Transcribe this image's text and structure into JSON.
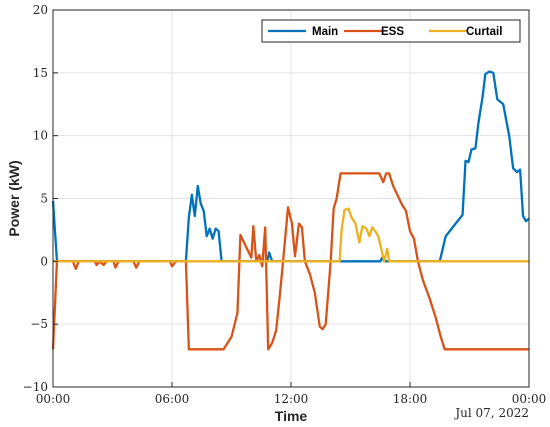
{
  "chart_data": {
    "type": "line",
    "xlabel": "Time",
    "ylabel": "Power (kW)",
    "date_label": "Jul 07, 2022",
    "xlim": [
      0,
      24
    ],
    "ylim": [
      -10,
      20
    ],
    "x_ticks": [
      {
        "value": 0,
        "label": "00:00"
      },
      {
        "value": 6,
        "label": "06:00"
      },
      {
        "value": 12,
        "label": "12:00"
      },
      {
        "value": 18,
        "label": "18:00"
      },
      {
        "value": 24,
        "label": "00:00"
      }
    ],
    "y_ticks": [
      -10,
      -5,
      0,
      5,
      10,
      15,
      20
    ],
    "grid": true,
    "legend_position": "top-right",
    "series": [
      {
        "name": "Main",
        "color": "#0072BD",
        "points": [
          [
            0,
            4.8
          ],
          [
            0.2,
            0
          ],
          [
            6.7,
            0
          ],
          [
            6.85,
            3.5
          ],
          [
            7.0,
            5.3
          ],
          [
            7.15,
            3.6
          ],
          [
            7.3,
            6.0
          ],
          [
            7.45,
            4.6
          ],
          [
            7.6,
            4.0
          ],
          [
            7.75,
            2.0
          ],
          [
            7.9,
            2.6
          ],
          [
            8.05,
            1.8
          ],
          [
            8.2,
            2.6
          ],
          [
            8.35,
            2.4
          ],
          [
            8.5,
            0
          ],
          [
            10.8,
            0
          ],
          [
            10.9,
            0.7
          ],
          [
            11.05,
            0
          ],
          [
            14.5,
            0
          ],
          [
            16.5,
            0
          ],
          [
            16.6,
            0.3
          ],
          [
            16.7,
            0
          ],
          [
            19.5,
            0
          ],
          [
            19.8,
            2.0
          ],
          [
            20.3,
            3.0
          ],
          [
            20.65,
            3.7
          ],
          [
            20.8,
            8.0
          ],
          [
            20.95,
            7.9
          ],
          [
            21.1,
            8.9
          ],
          [
            21.3,
            9.0
          ],
          [
            21.45,
            11.0
          ],
          [
            21.65,
            13.0
          ],
          [
            21.8,
            14.9
          ],
          [
            22.0,
            15.1
          ],
          [
            22.2,
            15.0
          ],
          [
            22.4,
            12.9
          ],
          [
            22.7,
            12.5
          ],
          [
            23.0,
            10.0
          ],
          [
            23.2,
            7.4
          ],
          [
            23.4,
            7.1
          ],
          [
            23.55,
            7.3
          ],
          [
            23.7,
            3.6
          ],
          [
            23.85,
            3.2
          ],
          [
            24.0,
            3.4
          ]
        ]
      },
      {
        "name": "ESS",
        "color": "#D95319",
        "points": [
          [
            0,
            -7.0
          ],
          [
            0.2,
            0
          ],
          [
            1.0,
            0
          ],
          [
            1.15,
            -0.6
          ],
          [
            1.3,
            0
          ],
          [
            2.1,
            0
          ],
          [
            2.2,
            -0.3
          ],
          [
            2.35,
            0
          ],
          [
            2.55,
            -0.3
          ],
          [
            2.7,
            0
          ],
          [
            3.05,
            0
          ],
          [
            3.15,
            -0.5
          ],
          [
            3.3,
            0
          ],
          [
            4.05,
            0
          ],
          [
            4.2,
            -0.5
          ],
          [
            4.35,
            0
          ],
          [
            5.9,
            0
          ],
          [
            6.0,
            -0.4
          ],
          [
            6.2,
            0
          ],
          [
            6.7,
            0
          ],
          [
            6.85,
            -7.0
          ],
          [
            8.6,
            -7.0
          ],
          [
            9.0,
            -6.0
          ],
          [
            9.3,
            -4.1
          ],
          [
            9.45,
            2.1
          ],
          [
            9.75,
            1.1
          ],
          [
            10.0,
            0.3
          ],
          [
            10.1,
            2.8
          ],
          [
            10.25,
            0
          ],
          [
            10.4,
            0.5
          ],
          [
            10.55,
            -0.4
          ],
          [
            10.7,
            2.7
          ],
          [
            10.85,
            -7.0
          ],
          [
            11.05,
            -6.5
          ],
          [
            11.25,
            -5.5
          ],
          [
            11.45,
            -2.5
          ],
          [
            11.6,
            0
          ],
          [
            11.85,
            4.3
          ],
          [
            12.05,
            3.0
          ],
          [
            12.2,
            0.4
          ],
          [
            12.4,
            3.0
          ],
          [
            12.55,
            2.7
          ],
          [
            12.7,
            0
          ],
          [
            12.95,
            -1.0
          ],
          [
            13.2,
            -2.5
          ],
          [
            13.45,
            -5.2
          ],
          [
            13.6,
            -5.4
          ],
          [
            13.75,
            -5.0
          ],
          [
            14.0,
            0
          ],
          [
            14.15,
            4.2
          ],
          [
            14.3,
            5.0
          ],
          [
            14.5,
            7.0
          ],
          [
            16.45,
            7.0
          ],
          [
            16.65,
            6.3
          ],
          [
            16.8,
            7.0
          ],
          [
            16.95,
            7.0
          ],
          [
            17.15,
            6.0
          ],
          [
            17.45,
            5.0
          ],
          [
            17.6,
            4.5
          ],
          [
            17.8,
            4.0
          ],
          [
            18.0,
            2.4
          ],
          [
            18.2,
            1.8
          ],
          [
            18.4,
            0
          ],
          [
            18.65,
            -1.5
          ],
          [
            19.0,
            -3.0
          ],
          [
            19.3,
            -4.5
          ],
          [
            19.55,
            -6.0
          ],
          [
            19.75,
            -7.0
          ],
          [
            24.0,
            -7.0
          ]
        ]
      },
      {
        "name": "Curtail",
        "color": "#EDB120",
        "points": [
          [
            0,
            0
          ],
          [
            14.45,
            0
          ],
          [
            14.55,
            2.5
          ],
          [
            14.7,
            4.1
          ],
          [
            14.9,
            4.2
          ],
          [
            15.05,
            3.5
          ],
          [
            15.25,
            3.0
          ],
          [
            15.45,
            1.5
          ],
          [
            15.6,
            2.8
          ],
          [
            15.8,
            2.6
          ],
          [
            15.95,
            2.0
          ],
          [
            16.1,
            2.7
          ],
          [
            16.25,
            2.4
          ],
          [
            16.4,
            2.0
          ],
          [
            16.55,
            1.0
          ],
          [
            16.7,
            0
          ],
          [
            16.85,
            1.0
          ],
          [
            16.95,
            0
          ],
          [
            24.0,
            0
          ]
        ]
      }
    ]
  }
}
